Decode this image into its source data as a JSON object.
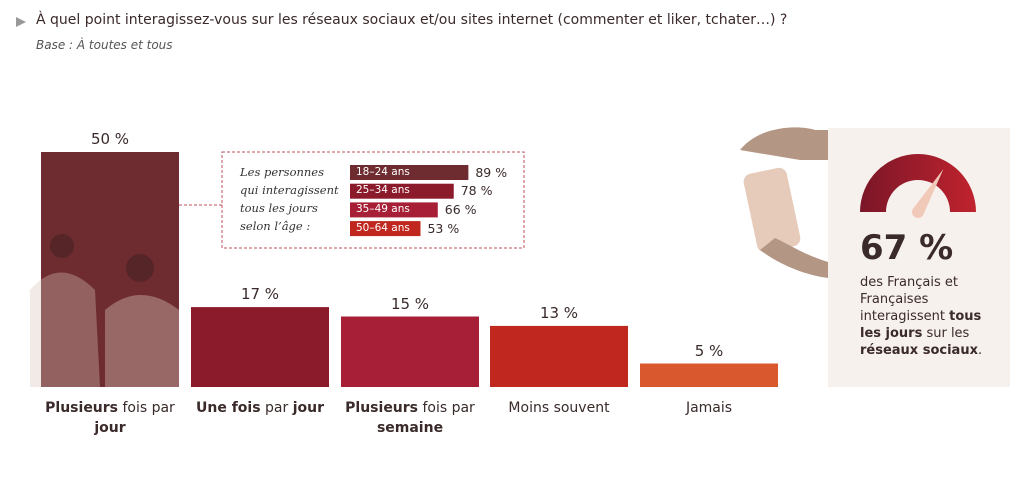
{
  "chart_data": {
    "type": "bar",
    "title": "À quel point interagissez-vous sur les réseaux sociaux et/ou sites internet (commenter et liker, tchater…) ?",
    "subtitle": "Base : À toutes et tous",
    "categories": [
      [
        {
          "text": "Plusieurs",
          "bold": true
        },
        {
          "text": " fois par ",
          "bold": false
        },
        {
          "text": "jour",
          "bold": true
        }
      ],
      [
        {
          "text": "Une fois",
          "bold": true
        },
        {
          "text": " par ",
          "bold": false
        },
        {
          "text": "jour",
          "bold": true
        }
      ],
      [
        {
          "text": "Plusieurs",
          "bold": true
        },
        {
          "text": " fois par ",
          "bold": false
        },
        {
          "text": "semaine",
          "bold": true
        }
      ],
      [
        {
          "text": "Moins souvent",
          "bold": false
        }
      ],
      [
        {
          "text": "Jamais",
          "bold": false
        }
      ]
    ],
    "values": [
      50,
      17,
      15,
      13,
      5
    ],
    "value_labels": [
      "50 %",
      "17 %",
      "15 %",
      "13 %",
      "5 %"
    ],
    "colors": [
      "#6e2c31",
      "#8b1a2b",
      "#a61f36",
      "#c0281f",
      "#d9582e"
    ],
    "inset": {
      "text": "Les personnes qui interagissent tous les jours selon l’âge :",
      "categories": [
        "18–24 ans",
        "25–34 ans",
        "35–49 ans",
        "50–64 ans"
      ],
      "values": [
        89,
        78,
        66,
        53
      ],
      "value_labels": [
        "89 %",
        "78 %",
        "66 %",
        "53 %"
      ],
      "colors": [
        "#6e2c31",
        "#8b1a2b",
        "#a61f36",
        "#c0281f"
      ]
    },
    "gauge": {
      "type": "gauge",
      "value": 67,
      "value_label": "67 %",
      "text": [
        {
          "text": "des Français et Françaises interagissent ",
          "bold": false
        },
        {
          "text": "tous les jours",
          "bold": true
        },
        {
          "text": " sur les ",
          "bold": false
        },
        {
          "text": "réseaux sociaux",
          "bold": true
        },
        {
          "text": ".",
          "bold": false
        }
      ]
    }
  }
}
